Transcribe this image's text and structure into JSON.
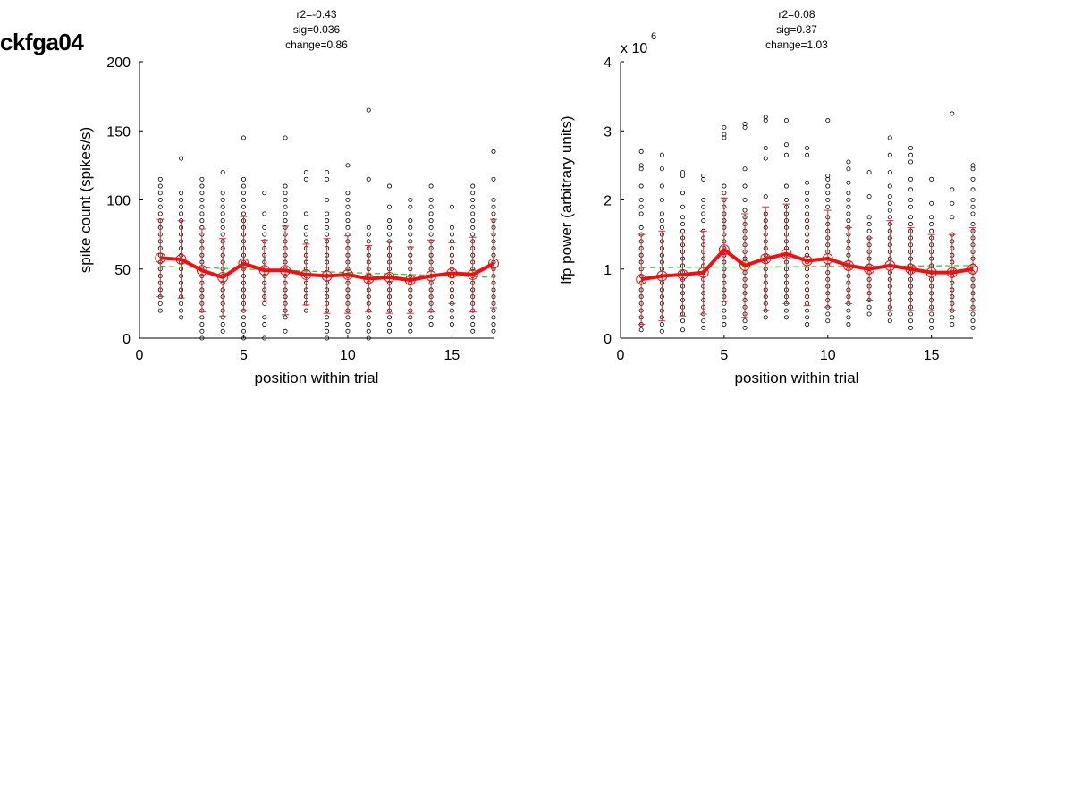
{
  "figure_title": "ckfga04",
  "colors": {
    "mean_line": "#ee1111",
    "error_bar": "#cc3333",
    "fit_line": "#33bb33",
    "points": "#000000"
  },
  "chart_data": [
    {
      "type": "scatter",
      "annotations": [
        "r2=-0.43",
        "sig=0.036",
        "change=0.86"
      ],
      "xlabel": "position within trial",
      "ylabel": "spike count (spikes/s)",
      "exponent": "",
      "xlim": [
        0,
        17
      ],
      "ylim": [
        0,
        200
      ],
      "xticks": [
        0,
        5,
        10,
        15
      ],
      "yticks": [
        0,
        50,
        100,
        150,
        200
      ],
      "xtick_labels": [
        "0",
        "5",
        "10",
        "15"
      ],
      "ytick_labels": [
        "0",
        "50",
        "100",
        "150",
        "200"
      ],
      "positions": [
        1,
        2,
        3,
        4,
        5,
        6,
        7,
        8,
        9,
        10,
        11,
        12,
        13,
        14,
        15,
        16,
        17
      ],
      "means": [
        58,
        57,
        49,
        44,
        54,
        49,
        49,
        46,
        45,
        46,
        43,
        44,
        42,
        45,
        47,
        46,
        54
      ],
      "errors": [
        28,
        28,
        30,
        28,
        34,
        22,
        32,
        22,
        27,
        28,
        24,
        26,
        24,
        26,
        22,
        27,
        32
      ],
      "fit": {
        "start": 52,
        "end": 44
      },
      "scatter_cols": [
        [
          20,
          25,
          30,
          35,
          40,
          45,
          50,
          55,
          60,
          65,
          70,
          75,
          80,
          85,
          90,
          95,
          100,
          105,
          110,
          115
        ],
        [
          15,
          20,
          25,
          30,
          35,
          40,
          45,
          50,
          55,
          60,
          65,
          70,
          75,
          80,
          85,
          90,
          95,
          100,
          105,
          130
        ],
        [
          0,
          5,
          10,
          15,
          20,
          25,
          30,
          35,
          40,
          45,
          50,
          55,
          60,
          65,
          70,
          75,
          80,
          85,
          90,
          95,
          100,
          105,
          110,
          115
        ],
        [
          5,
          10,
          15,
          20,
          25,
          30,
          35,
          40,
          45,
          50,
          55,
          60,
          65,
          70,
          75,
          80,
          85,
          90,
          95,
          100,
          105,
          120
        ],
        [
          0,
          5,
          10,
          15,
          20,
          25,
          30,
          35,
          40,
          45,
          50,
          55,
          60,
          65,
          70,
          75,
          80,
          85,
          90,
          95,
          100,
          105,
          110,
          115,
          145
        ],
        [
          0,
          10,
          15,
          25,
          30,
          35,
          40,
          45,
          50,
          55,
          60,
          65,
          70,
          75,
          80,
          90,
          105
        ],
        [
          5,
          15,
          20,
          25,
          30,
          35,
          40,
          45,
          50,
          55,
          60,
          65,
          70,
          75,
          80,
          85,
          90,
          95,
          100,
          105,
          110,
          145
        ],
        [
          20,
          25,
          30,
          35,
          40,
          45,
          50,
          55,
          60,
          65,
          70,
          75,
          80,
          90,
          115,
          120
        ],
        [
          0,
          5,
          10,
          15,
          20,
          25,
          30,
          35,
          40,
          45,
          50,
          55,
          60,
          65,
          70,
          75,
          80,
          85,
          90,
          100,
          115,
          120
        ],
        [
          5,
          10,
          15,
          20,
          25,
          30,
          35,
          40,
          45,
          50,
          55,
          60,
          65,
          70,
          75,
          80,
          85,
          90,
          95,
          100,
          105,
          125
        ],
        [
          0,
          5,
          10,
          15,
          20,
          25,
          30,
          35,
          40,
          45,
          50,
          55,
          60,
          65,
          70,
          75,
          80,
          115,
          165
        ],
        [
          5,
          10,
          15,
          20,
          25,
          30,
          35,
          40,
          45,
          50,
          55,
          60,
          65,
          70,
          75,
          80,
          85,
          95,
          110
        ],
        [
          5,
          10,
          15,
          20,
          25,
          30,
          35,
          40,
          45,
          50,
          55,
          60,
          65,
          70,
          75,
          80,
          85,
          95,
          100
        ],
        [
          10,
          15,
          20,
          25,
          30,
          35,
          40,
          45,
          50,
          55,
          60,
          65,
          70,
          75,
          80,
          85,
          90,
          95,
          100,
          110
        ],
        [
          10,
          15,
          20,
          25,
          30,
          35,
          40,
          45,
          50,
          55,
          60,
          65,
          70,
          75,
          80,
          95
        ],
        [
          5,
          10,
          15,
          20,
          25,
          30,
          35,
          40,
          45,
          50,
          55,
          60,
          65,
          70,
          75,
          80,
          85,
          90,
          95,
          100,
          105,
          110
        ],
        [
          5,
          10,
          15,
          20,
          25,
          30,
          35,
          40,
          45,
          50,
          55,
          60,
          65,
          70,
          75,
          80,
          85,
          90,
          95,
          100,
          115,
          135
        ]
      ]
    },
    {
      "type": "scatter",
      "annotations": [
        "r2=0.08",
        "sig=0.37",
        "change=1.03"
      ],
      "xlabel": "position within trial",
      "ylabel": "lfp power (arbitrary units)",
      "exponent": "x 10^6",
      "exponent_base": "x 10",
      "exponent_power": "6",
      "xlim": [
        0,
        17
      ],
      "ylim": [
        0,
        4
      ],
      "xticks": [
        0,
        5,
        10,
        15
      ],
      "yticks": [
        0,
        1,
        2,
        3,
        4
      ],
      "xtick_labels": [
        "0",
        "5",
        "10",
        "15"
      ],
      "ytick_labels": [
        "0",
        "1",
        "2",
        "3",
        "4"
      ],
      "positions": [
        1,
        2,
        3,
        4,
        5,
        6,
        7,
        8,
        9,
        10,
        11,
        12,
        13,
        14,
        15,
        16,
        17
      ],
      "means": [
        0.85,
        0.9,
        0.92,
        0.95,
        1.28,
        1.05,
        1.15,
        1.22,
        1.12,
        1.15,
        1.05,
        1.0,
        1.05,
        1.0,
        0.95,
        0.95,
        1.0
      ],
      "errors": [
        0.65,
        0.65,
        0.6,
        0.6,
        0.75,
        0.75,
        0.75,
        0.72,
        0.65,
        0.7,
        0.55,
        0.45,
        0.65,
        0.6,
        0.55,
        0.55,
        0.6
      ],
      "fit": {
        "start": 1.02,
        "end": 1.05
      },
      "scatter_cols": [
        [
          0.12,
          0.2,
          0.3,
          0.4,
          0.5,
          0.6,
          0.7,
          0.8,
          0.9,
          1.0,
          1.1,
          1.2,
          1.3,
          1.4,
          1.5,
          1.6,
          1.8,
          1.9,
          2.0,
          2.2,
          2.45,
          2.5,
          2.7
        ],
        [
          0.1,
          0.2,
          0.3,
          0.4,
          0.5,
          0.6,
          0.7,
          0.8,
          0.9,
          1.0,
          1.1,
          1.2,
          1.3,
          1.4,
          1.5,
          1.6,
          1.7,
          1.8,
          2.0,
          2.2,
          2.45,
          2.65
        ],
        [
          0.12,
          0.25,
          0.35,
          0.45,
          0.55,
          0.65,
          0.75,
          0.85,
          0.95,
          1.05,
          1.15,
          1.25,
          1.35,
          1.45,
          1.55,
          1.65,
          1.75,
          1.9,
          2.1,
          2.35,
          2.4
        ],
        [
          0.15,
          0.25,
          0.35,
          0.45,
          0.55,
          0.65,
          0.75,
          0.85,
          0.95,
          1.05,
          1.15,
          1.25,
          1.35,
          1.45,
          1.55,
          1.7,
          1.8,
          1.9,
          2.0,
          2.3,
          2.35
        ],
        [
          0.2,
          0.3,
          0.4,
          0.5,
          0.6,
          0.7,
          0.8,
          0.9,
          1.0,
          1.1,
          1.2,
          1.3,
          1.4,
          1.5,
          1.6,
          1.7,
          1.8,
          1.9,
          2.0,
          2.1,
          2.2,
          2.9,
          2.95,
          3.05
        ],
        [
          0.15,
          0.25,
          0.35,
          0.45,
          0.55,
          0.65,
          0.75,
          0.85,
          0.95,
          1.05,
          1.15,
          1.25,
          1.35,
          1.45,
          1.55,
          1.65,
          1.75,
          1.85,
          2.0,
          2.2,
          2.45,
          3.05,
          3.1
        ],
        [
          0.3,
          0.4,
          0.5,
          0.6,
          0.7,
          0.8,
          0.9,
          1.0,
          1.1,
          1.2,
          1.3,
          1.4,
          1.5,
          1.6,
          1.7,
          1.8,
          2.05,
          2.6,
          2.75,
          3.15,
          3.2
        ],
        [
          0.3,
          0.4,
          0.5,
          0.6,
          0.7,
          0.8,
          0.9,
          1.0,
          1.1,
          1.2,
          1.3,
          1.4,
          1.5,
          1.6,
          1.7,
          1.8,
          1.9,
          2.0,
          2.2,
          2.65,
          2.8,
          3.15
        ],
        [
          0.2,
          0.3,
          0.4,
          0.5,
          0.6,
          0.7,
          0.8,
          0.9,
          1.0,
          1.1,
          1.2,
          1.3,
          1.4,
          1.5,
          1.6,
          1.7,
          1.8,
          1.9,
          2.0,
          2.1,
          2.25,
          2.65,
          2.75
        ],
        [
          0.25,
          0.35,
          0.45,
          0.55,
          0.65,
          0.75,
          0.85,
          0.95,
          1.05,
          1.15,
          1.25,
          1.35,
          1.45,
          1.55,
          1.65,
          1.75,
          1.9,
          2.0,
          2.1,
          2.2,
          2.3,
          2.35,
          3.15
        ],
        [
          0.2,
          0.3,
          0.4,
          0.5,
          0.6,
          0.7,
          0.8,
          0.9,
          1.0,
          1.1,
          1.2,
          1.3,
          1.4,
          1.5,
          1.6,
          1.7,
          1.8,
          1.9,
          2.0,
          2.1,
          2.25,
          2.45,
          2.55
        ],
        [
          0.35,
          0.45,
          0.55,
          0.65,
          0.75,
          0.85,
          0.95,
          1.05,
          1.15,
          1.25,
          1.35,
          1.45,
          1.55,
          1.65,
          1.75,
          2.05,
          2.4
        ],
        [
          0.25,
          0.35,
          0.45,
          0.55,
          0.65,
          0.75,
          0.85,
          0.95,
          1.05,
          1.15,
          1.25,
          1.35,
          1.45,
          1.55,
          1.65,
          1.75,
          1.85,
          1.95,
          2.05,
          2.2,
          2.4,
          2.65,
          2.9
        ],
        [
          0.15,
          0.25,
          0.35,
          0.45,
          0.55,
          0.65,
          0.75,
          0.85,
          0.95,
          1.05,
          1.15,
          1.25,
          1.35,
          1.45,
          1.55,
          1.65,
          1.75,
          1.9,
          2.0,
          2.15,
          2.3,
          2.55,
          2.65,
          2.75
        ],
        [
          0.15,
          0.25,
          0.35,
          0.45,
          0.55,
          0.65,
          0.75,
          0.85,
          0.95,
          1.05,
          1.15,
          1.25,
          1.35,
          1.45,
          1.55,
          1.65,
          1.75,
          1.95,
          2.3
        ],
        [
          0.2,
          0.3,
          0.4,
          0.5,
          0.6,
          0.7,
          0.8,
          0.9,
          1.0,
          1.1,
          1.2,
          1.3,
          1.4,
          1.5,
          1.75,
          1.95,
          2.15,
          3.25
        ],
        [
          0.15,
          0.25,
          0.35,
          0.45,
          0.55,
          0.65,
          0.75,
          0.85,
          0.95,
          1.05,
          1.15,
          1.25,
          1.35,
          1.45,
          1.55,
          1.65,
          1.8,
          1.9,
          2.0,
          2.15,
          2.3,
          2.45,
          2.5
        ]
      ]
    }
  ]
}
